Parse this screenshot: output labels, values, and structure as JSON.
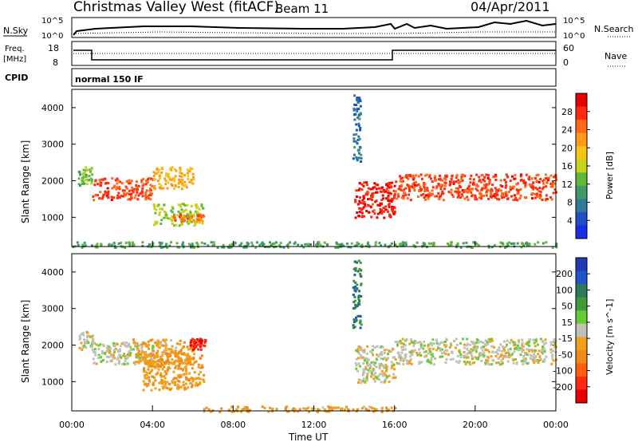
{
  "header": {
    "station": "Christmas Valley West (fitACF)",
    "beam": "Beam 11",
    "date": "04/Apr/2011"
  },
  "noise_panel": {
    "left_label": "N.Sky",
    "left_ticks": [
      "10^5",
      "10^0"
    ],
    "right_ticks": [
      "10^5",
      "10^0"
    ],
    "right_label": "N.Search"
  },
  "freq_panel": {
    "left_label_line1": "Freq.",
    "left_label_line2": "[MHz]",
    "left_ticks": [
      "18",
      "8"
    ],
    "right_ticks": [
      "60",
      "0"
    ],
    "right_label": "Nave"
  },
  "cpid_panel": {
    "label": "CPID",
    "value": "normal 150 IF"
  },
  "x_axis": {
    "label": "Time UT",
    "ticks": [
      "00:00",
      "04:00",
      "08:00",
      "12:00",
      "16:00",
      "20:00",
      "00:00"
    ]
  },
  "colors": {
    "power_scale": [
      "#1a2ee8",
      "#1e50c8",
      "#2f7a9a",
      "#3e9a6a",
      "#5fb83a",
      "#c8d21c",
      "#f3c514",
      "#ff9a1a",
      "#ff6a1a",
      "#ff2a10",
      "#e80000"
    ],
    "velocity_scale": [
      "#1e3ab4",
      "#1e55c8",
      "#2e7a5a",
      "#3f9a3a",
      "#66cc33",
      "#c0c0b8",
      "#f2a01a",
      "#f08a18",
      "#ff6010",
      "#ff2a10",
      "#e80000"
    ]
  },
  "chart_data": [
    {
      "type": "heatmap",
      "name": "power",
      "ylabel": "Slant Range [km]",
      "yticks": [
        "4000",
        "3000",
        "2000",
        "1000"
      ],
      "ylim": [
        200,
        4500
      ],
      "xlim": [
        "00:00",
        "24:00"
      ],
      "colorbar_label": "Power [dB]",
      "colorbar_ticks": [
        "28",
        "24",
        "20",
        "16",
        "12",
        "8",
        "4"
      ],
      "colorbar_range": [
        0,
        30
      ],
      "regions": [
        {
          "t": [
            0.3,
            1.0
          ],
          "r": [
            1900,
            2400
          ],
          "val": 12
        },
        {
          "t": [
            1.0,
            4.0
          ],
          "r": [
            1500,
            2100
          ],
          "val": 26
        },
        {
          "t": [
            4.0,
            6.0
          ],
          "r": [
            1800,
            2400
          ],
          "val": 20
        },
        {
          "t": [
            4.0,
            6.5
          ],
          "r": [
            800,
            1400
          ],
          "val": 14
        },
        {
          "t": [
            5.0,
            6.5
          ],
          "r": [
            900,
            1100
          ],
          "val": 24
        },
        {
          "t": [
            14.0,
            16.0
          ],
          "r": [
            1000,
            2000
          ],
          "val": 28
        },
        {
          "t": [
            13.9,
            14.3
          ],
          "r": [
            2500,
            4400
          ],
          "val": 6
        },
        {
          "t": [
            16.0,
            24.0
          ],
          "r": [
            1500,
            2200
          ],
          "val": 26
        },
        {
          "t": [
            0.0,
            24.0
          ],
          "r": [
            200,
            350
          ],
          "val": 10
        }
      ]
    },
    {
      "type": "heatmap",
      "name": "velocity",
      "ylabel": "Slant Range [km]",
      "yticks": [
        "4000",
        "3000",
        "2000",
        "1000"
      ],
      "ylim": [
        200,
        4500
      ],
      "xlim": [
        "00:00",
        "24:00"
      ],
      "colorbar_label": "Velocity [m s^-1]",
      "colorbar_ticks": [
        "200",
        "100",
        "50",
        "15",
        "-15",
        "-50",
        "-100",
        "-200"
      ],
      "colorbar_range": [
        -250,
        250
      ],
      "regions": [
        {
          "t": [
            0.3,
            1.0
          ],
          "r": [
            1900,
            2400
          ],
          "val": 0
        },
        {
          "t": [
            1.0,
            4.0
          ],
          "r": [
            1500,
            2100
          ],
          "val": 0
        },
        {
          "t": [
            3.0,
            6.0
          ],
          "r": [
            1500,
            2200
          ],
          "val": -60
        },
        {
          "t": [
            5.8,
            6.6
          ],
          "r": [
            1900,
            2200
          ],
          "val": -220
        },
        {
          "t": [
            3.5,
            6.5
          ],
          "r": [
            800,
            1800
          ],
          "val": -70
        },
        {
          "t": [
            14.0,
            16.0
          ],
          "r": [
            1000,
            2000
          ],
          "val": 0
        },
        {
          "t": [
            13.9,
            14.3
          ],
          "r": [
            2500,
            4400
          ],
          "val": 150
        },
        {
          "t": [
            16.0,
            24.0
          ],
          "r": [
            1500,
            2200
          ],
          "val": 0
        },
        {
          "t": [
            6.5,
            16.0
          ],
          "r": [
            200,
            350
          ],
          "val": -60
        }
      ]
    }
  ]
}
